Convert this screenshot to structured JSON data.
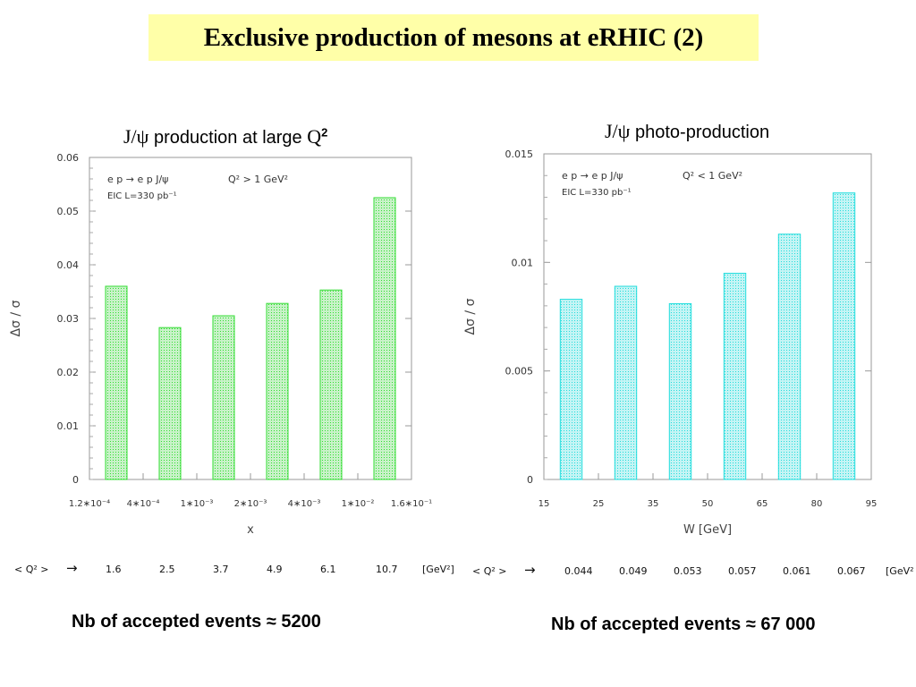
{
  "slide": {
    "title": "Exclusive production of mesons at eRHIC (2)"
  },
  "left": {
    "heading_psi": "J/ψ",
    "heading_text": " production at large ",
    "heading_q": "Q",
    "heading_sup": "2",
    "qrow_label": "< Q² >",
    "qrow_arrow": "→",
    "qrow_values": [
      "1.6",
      "2.5",
      "3.7",
      "4.9",
      "6.1",
      "10.7"
    ],
    "qrow_unit": "[GeV²]",
    "events": "Nb of accepted events ≈ 5200"
  },
  "right": {
    "heading_psi": "J/ψ",
    "heading_text": " photo-production",
    "qrow_label": "< Q² >",
    "qrow_arrow": "→",
    "qrow_values": [
      "0.044",
      "0.049",
      "0.053",
      "0.057",
      "0.061",
      "0.067"
    ],
    "qrow_unit": "[GeV²",
    "events": "Nb of accepted events ≈ 67 000"
  },
  "chart_data": [
    {
      "type": "bar",
      "color": "#33dd33",
      "fill": "#c8f2c8",
      "xlabel": "x",
      "ylabel": "Δσ / σ",
      "ylim": [
        0,
        0.06
      ],
      "yticks": [
        "0",
        "0.01",
        "0.02",
        "0.03",
        "0.04",
        "0.05",
        "0.06"
      ],
      "xticks": [
        "1.2∗10⁻⁴",
        "4∗10⁻⁴",
        "1∗10⁻³",
        "2∗10⁻³",
        "4∗10⁻³",
        "1∗10⁻²",
        "1.6∗10⁻¹"
      ],
      "values": [
        0.036,
        0.0283,
        0.0305,
        0.0328,
        0.0353,
        0.0525
      ],
      "annotation_process": "e p  →  e p J/ψ",
      "annotation_cut": "Q² > 1 GeV²",
      "annotation_lumi": "EIC  L=330 pb⁻¹"
    },
    {
      "type": "bar",
      "color": "#22dddd",
      "fill": "#c4f4f4",
      "xlabel": "W [GeV]",
      "ylabel": "Δσ / σ",
      "ylim": [
        0,
        0.015
      ],
      "yticks": [
        "0",
        "0.005",
        "0.01",
        "0.015"
      ],
      "xticks": [
        "15",
        "25",
        "35",
        "50",
        "65",
        "80",
        "95"
      ],
      "values": [
        0.0083,
        0.0089,
        0.0081,
        0.0095,
        0.0113,
        0.0132
      ],
      "annotation_process": "e p  →  e p J/ψ",
      "annotation_cut": "Q² < 1 GeV²",
      "annotation_lumi": "EIC  L=330 pb⁻¹"
    }
  ]
}
